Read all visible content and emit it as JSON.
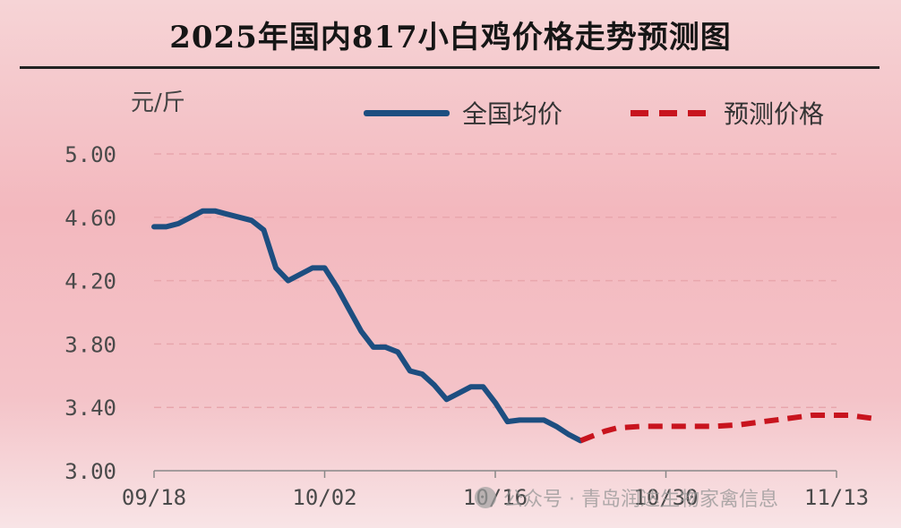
{
  "chart_data": {
    "type": "line",
    "title": "2025年国内817小白鸡价格走势预测图",
    "ylabel": "元/斤",
    "xlabel": "",
    "ylim": [
      3.0,
      5.0
    ],
    "yticks": [
      "5.00",
      "4.60",
      "4.20",
      "3.80",
      "3.40",
      "3.00"
    ],
    "xticks": [
      "09/18",
      "10/02",
      "10/16",
      "10/30",
      "11/13"
    ],
    "grid": "horizontal dashed",
    "legend": "top-right",
    "series": [
      {
        "name": "全国均价",
        "color": "#1d4e80",
        "style": "solid",
        "points": [
          {
            "day": 0,
            "value": 4.54
          },
          {
            "day": 1,
            "value": 4.54
          },
          {
            "day": 2,
            "value": 4.56
          },
          {
            "day": 3,
            "value": 4.6
          },
          {
            "day": 4,
            "value": 4.64
          },
          {
            "day": 5,
            "value": 4.64
          },
          {
            "day": 6,
            "value": 4.62
          },
          {
            "day": 7,
            "value": 4.6
          },
          {
            "day": 8,
            "value": 4.58
          },
          {
            "day": 9,
            "value": 4.52
          },
          {
            "day": 10,
            "value": 4.28
          },
          {
            "day": 11,
            "value": 4.2
          },
          {
            "day": 12,
            "value": 4.24
          },
          {
            "day": 13,
            "value": 4.28
          },
          {
            "day": 14,
            "value": 4.28
          },
          {
            "day": 15,
            "value": 4.16
          },
          {
            "day": 16,
            "value": 4.02
          },
          {
            "day": 17,
            "value": 3.88
          },
          {
            "day": 18,
            "value": 3.78
          },
          {
            "day": 19,
            "value": 3.78
          },
          {
            "day": 20,
            "value": 3.75
          },
          {
            "day": 21,
            "value": 3.63
          },
          {
            "day": 22,
            "value": 3.61
          },
          {
            "day": 23,
            "value": 3.54
          },
          {
            "day": 24,
            "value": 3.45
          },
          {
            "day": 25,
            "value": 3.49
          },
          {
            "day": 26,
            "value": 3.53
          },
          {
            "day": 27,
            "value": 3.53
          },
          {
            "day": 28,
            "value": 3.43
          },
          {
            "day": 29,
            "value": 3.31
          },
          {
            "day": 30,
            "value": 3.32
          },
          {
            "day": 31,
            "value": 3.32
          },
          {
            "day": 32,
            "value": 3.32
          },
          {
            "day": 33,
            "value": 3.28
          },
          {
            "day": 34,
            "value": 3.23
          },
          {
            "day": 35,
            "value": 3.19
          }
        ]
      },
      {
        "name": "预测价格",
        "color": "#c8141e",
        "style": "dashed",
        "points": [
          {
            "day": 35,
            "value": 3.19
          },
          {
            "day": 36,
            "value": 3.22
          },
          {
            "day": 37,
            "value": 3.25
          },
          {
            "day": 38,
            "value": 3.27
          },
          {
            "day": 40,
            "value": 3.28
          },
          {
            "day": 42,
            "value": 3.28
          },
          {
            "day": 44,
            "value": 3.28
          },
          {
            "day": 46,
            "value": 3.28
          },
          {
            "day": 48,
            "value": 3.29
          },
          {
            "day": 50,
            "value": 3.31
          },
          {
            "day": 52,
            "value": 3.33
          },
          {
            "day": 54,
            "value": 3.35
          },
          {
            "day": 56,
            "value": 3.35
          },
          {
            "day": 57,
            "value": 3.35
          },
          {
            "day": 58,
            "value": 3.34
          },
          {
            "day": 59,
            "value": 3.33
          }
        ]
      }
    ],
    "x_domain": [
      0,
      56
    ]
  },
  "watermark": {
    "text": "公众号 · 青岛润达生物家禽信息"
  }
}
